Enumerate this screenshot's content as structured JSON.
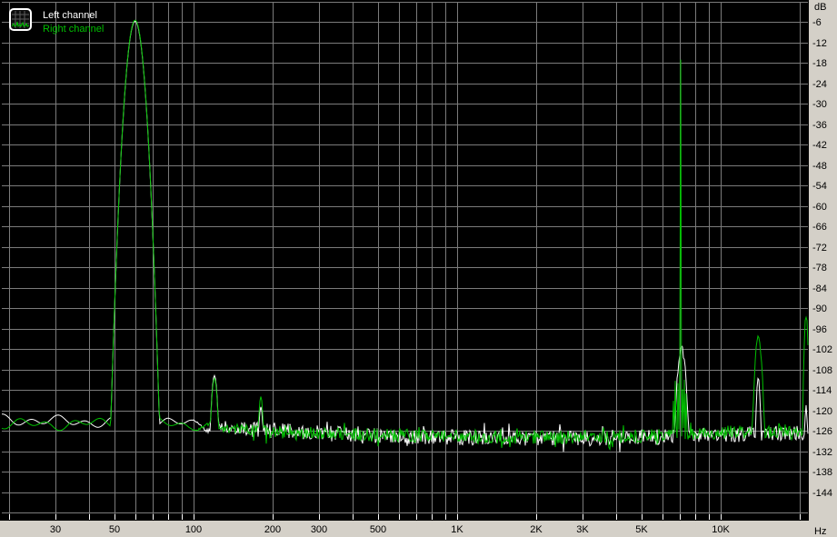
{
  "legend": {
    "items": [
      {
        "label": "Left channel",
        "color": "#ffffff"
      },
      {
        "label": "Right channel",
        "color": "#00c000"
      }
    ]
  },
  "icon": {
    "name": "spectrum-analyzer-icon"
  },
  "colors": {
    "plot_background": "#000000",
    "grid": "#7b7b7b",
    "gutter_background": "#d4d0c8",
    "axis_text": "#000000",
    "tick_mark": "#ffffff",
    "left_channel": "#ffffff",
    "right_channel": "#00c000"
  },
  "chart_data": {
    "type": "line",
    "title": "",
    "x_axis": {
      "unit_label": "Hz",
      "scale": "log",
      "min_hz": 18.7,
      "max_hz": 21500,
      "ticks": [
        {
          "f": 30,
          "label": "30"
        },
        {
          "f": 50,
          "label": "50"
        },
        {
          "f": 100,
          "label": "100"
        },
        {
          "f": 200,
          "label": "200"
        },
        {
          "f": 300,
          "label": "300"
        },
        {
          "f": 500,
          "label": "500"
        },
        {
          "f": 1000,
          "label": "1K"
        },
        {
          "f": 2000,
          "label": "2K"
        },
        {
          "f": 3000,
          "label": "3K"
        },
        {
          "f": 5000,
          "label": "5K"
        },
        {
          "f": 10000,
          "label": "10K"
        }
      ],
      "gridline_freqs": [
        20,
        30,
        40,
        50,
        60,
        70,
        80,
        90,
        100,
        200,
        300,
        400,
        500,
        600,
        700,
        800,
        900,
        1000,
        2000,
        3000,
        4000,
        5000,
        6000,
        7000,
        8000,
        9000,
        10000,
        20000
      ]
    },
    "y_axis": {
      "unit_label": "dB",
      "min_db": -150,
      "max_db": 0,
      "grid_step_db": 6,
      "labels": [
        {
          "db": -6,
          "label": "-6"
        },
        {
          "db": -12,
          "label": "-12"
        },
        {
          "db": -18,
          "label": "-18"
        },
        {
          "db": -24,
          "label": "-24"
        },
        {
          "db": -30,
          "label": "-30"
        },
        {
          "db": -36,
          "label": "-36"
        },
        {
          "db": -42,
          "label": "-42"
        },
        {
          "db": -48,
          "label": "-48"
        },
        {
          "db": -54,
          "label": "-54"
        },
        {
          "db": -60,
          "label": "-60"
        },
        {
          "db": -66,
          "label": "-66"
        },
        {
          "db": -72,
          "label": "-72"
        },
        {
          "db": -78,
          "label": "-78"
        },
        {
          "db": -84,
          "label": "-84"
        },
        {
          "db": -90,
          "label": "-90"
        },
        {
          "db": -96,
          "label": "-96"
        },
        {
          "db": -102,
          "label": "-102"
        },
        {
          "db": -108,
          "label": "-108"
        },
        {
          "db": -114,
          "label": "-114"
        },
        {
          "db": -120,
          "label": "-120"
        },
        {
          "db": -126,
          "label": "-126"
        },
        {
          "db": -132,
          "label": "-132"
        },
        {
          "db": -138,
          "label": "-138"
        },
        {
          "db": -144,
          "label": "-144"
        }
      ]
    },
    "grid": true,
    "legend_position": "top-left",
    "series": [
      {
        "name": "Left channel",
        "color": "#ffffff",
        "seed": 101,
        "wiggle_phases": [
          0.7,
          2.1
        ],
        "jitter_amp_db": 2.3,
        "noise_floor_db": [
          [
            18,
            -122.6
          ],
          [
            30,
            -123.2
          ],
          [
            45,
            -123.5
          ],
          [
            80,
            -123.2
          ],
          [
            110,
            -124.8
          ],
          [
            160,
            -125.5
          ],
          [
            250,
            -126.3
          ],
          [
            400,
            -127.3
          ],
          [
            800,
            -127.9
          ],
          [
            3000,
            -128.2
          ],
          [
            6000,
            -127.8
          ],
          [
            9000,
            -127.2
          ],
          [
            14000,
            -127.0
          ],
          [
            21500,
            -126.8
          ]
        ],
        "peaks_f_top_hw_jag": [
          [
            60,
            -5.8,
            0.095,
            0
          ],
          [
            120,
            -109.8,
            0.045,
            0
          ],
          [
            180,
            -119.0,
            0.035,
            0
          ],
          [
            300,
            -120.9,
            0.006,
            0
          ],
          [
            420,
            -122.0,
            0.006,
            0
          ],
          [
            1460,
            -123.0,
            0.006,
            0
          ],
          [
            7100,
            -101.5,
            0.06,
            1
          ],
          [
            13900,
            -111.0,
            0.03,
            1
          ],
          [
            21100,
            -118.0,
            0.02,
            1
          ]
        ]
      },
      {
        "name": "Right channel",
        "color": "#00c000",
        "seed": 202,
        "wiggle_phases": [
          3.4,
          5.2
        ],
        "jitter_amp_db": 2.0,
        "noise_floor_db": [
          [
            18,
            -124.0
          ],
          [
            30,
            -124.2
          ],
          [
            45,
            -123.8
          ],
          [
            80,
            -123.4
          ],
          [
            110,
            -125.0
          ],
          [
            160,
            -125.8
          ],
          [
            250,
            -126.5
          ],
          [
            400,
            -127.2
          ],
          [
            800,
            -127.7
          ],
          [
            3000,
            -127.9
          ],
          [
            6000,
            -127.4
          ],
          [
            9000,
            -126.6
          ],
          [
            14000,
            -126.2
          ],
          [
            21500,
            -126.0
          ]
        ],
        "peaks_f_top_hw_jag": [
          [
            60,
            -5.5,
            0.095,
            0
          ],
          [
            120,
            -110.6,
            0.045,
            0
          ],
          [
            180,
            -116.0,
            0.035,
            0
          ],
          [
            6200,
            -122.5,
            0.004,
            0
          ],
          [
            6500,
            -121.0,
            0.004,
            0
          ],
          [
            6620,
            -117.0,
            0.004,
            0
          ],
          [
            6720,
            -111.0,
            0.004,
            0
          ],
          [
            6800,
            -107.5,
            0.004,
            0
          ],
          [
            6900,
            -105.5,
            0.004,
            0
          ],
          [
            7000,
            -106.0,
            0.004,
            0
          ],
          [
            7050,
            -17.0,
            0.003,
            0
          ],
          [
            7150,
            -108.0,
            0.004,
            0
          ],
          [
            7280,
            -111.0,
            0.004,
            0
          ],
          [
            7400,
            -114.5,
            0.004,
            0
          ],
          [
            7550,
            -119.0,
            0.004,
            0
          ],
          [
            7700,
            -123.0,
            0.004,
            0
          ],
          [
            13900,
            -98.5,
            0.05,
            1
          ],
          [
            21100,
            -92.5,
            0.027,
            1
          ]
        ]
      }
    ]
  }
}
